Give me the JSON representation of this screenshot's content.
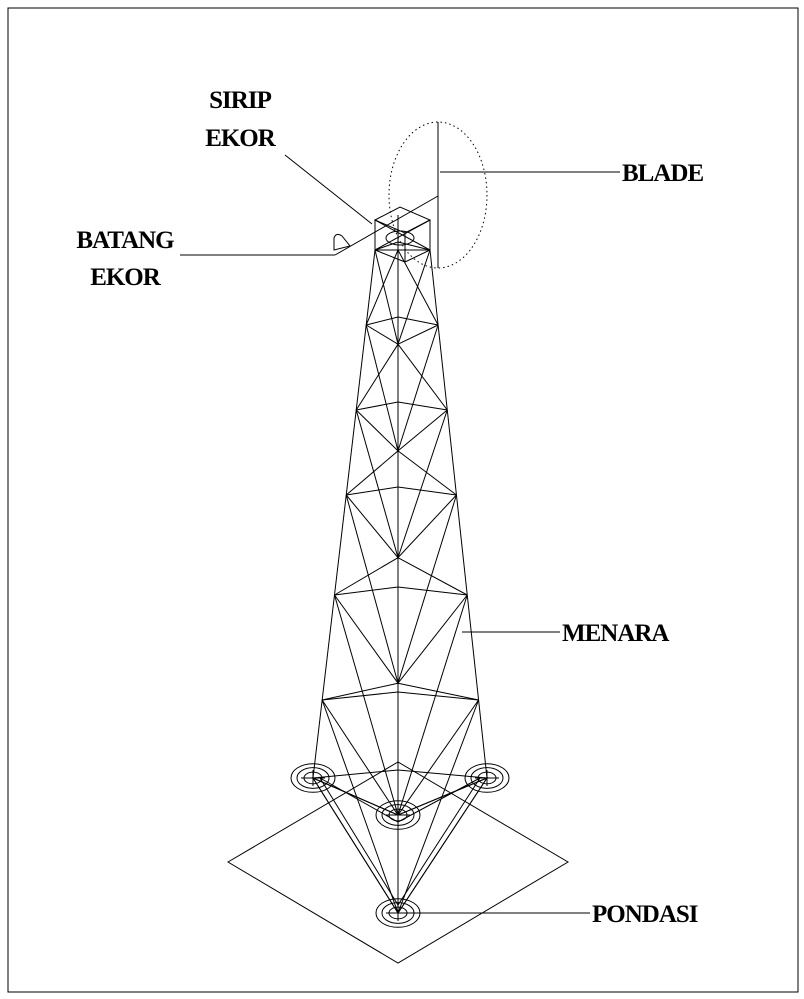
{
  "labels": {
    "sirip_ekor": [
      "SIRIP",
      "EKOR"
    ],
    "blade": "BLADE",
    "batang_ekor": [
      "BATANG",
      "EKOR"
    ],
    "menara": "MENARA",
    "pondasi": "PONDASI"
  }
}
